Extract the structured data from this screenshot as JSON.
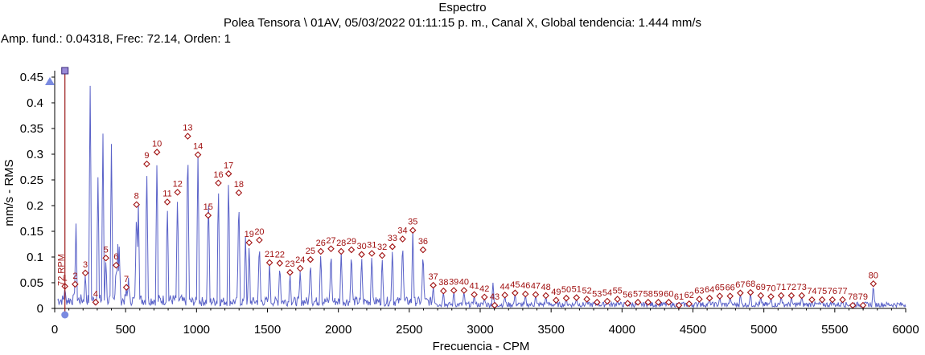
{
  "title": "Espectro",
  "header_line": "Polea  Tensora \\ 01AV, 05/03/2022 01:11:15 p. m., Canal X, Global tendencia: 1.444 mm/s",
  "cursor_info": "Amp. fund.: 0.04318, Frec: 72.14, Orden: 1",
  "cursor_label": "72 RPM",
  "colors": {
    "spectrum": "#5a62c8",
    "harmonic": "#a01010",
    "cursor": "#9a1a1a",
    "axis": "#000000"
  },
  "chart_data": {
    "type": "line",
    "xlabel": "Frecuencia - CPM",
    "ylabel": "mm/s - RMS",
    "xlim": [
      0,
      6000
    ],
    "ylim": [
      0,
      0.45
    ],
    "xticks": [
      "0",
      "500",
      "1000",
      "1500",
      "2000",
      "2500",
      "3000",
      "3500",
      "4000",
      "4500",
      "5000",
      "5500",
      "6000"
    ],
    "yticks": [
      "0",
      "0.05",
      "0.1",
      "0.15",
      "0.2",
      "0.25",
      "0.3",
      "0.35",
      "0.4",
      "0.45"
    ],
    "grid": false,
    "cursor_frequency": 72.14,
    "peaks": [
      {
        "x": 150,
        "y": 0.165
      },
      {
        "x": 250,
        "y": 0.433
      },
      {
        "x": 305,
        "y": 0.255
      },
      {
        "x": 340,
        "y": 0.34
      },
      {
        "x": 400,
        "y": 0.32
      },
      {
        "x": 445,
        "y": 0.125
      },
      {
        "x": 455,
        "y": 0.12
      },
      {
        "x": 520,
        "y": 0.06
      },
      {
        "x": 590,
        "y": 0.205
      },
      {
        "x": 1085,
        "y": 0.2
      },
      {
        "x": 1345,
        "y": 0.14
      },
      {
        "x": 3090,
        "y": 0.05
      }
    ],
    "harmonics": [
      {
        "label": "1",
        "x": 72,
        "y": 0.043
      },
      {
        "label": "2",
        "x": 144,
        "y": 0.047
      },
      {
        "label": "3",
        "x": 216,
        "y": 0.069
      },
      {
        "label": "4",
        "x": 289,
        "y": 0.012
      },
      {
        "label": "5",
        "x": 361,
        "y": 0.098
      },
      {
        "label": "6",
        "x": 433,
        "y": 0.084
      },
      {
        "label": "7",
        "x": 505,
        "y": 0.041
      },
      {
        "label": "8",
        "x": 577,
        "y": 0.202
      },
      {
        "label": "9",
        "x": 649,
        "y": 0.281
      },
      {
        "label": "10",
        "x": 721,
        "y": 0.304
      },
      {
        "label": "11",
        "x": 794,
        "y": 0.207
      },
      {
        "label": "12",
        "x": 866,
        "y": 0.226
      },
      {
        "label": "13",
        "x": 938,
        "y": 0.335
      },
      {
        "label": "14",
        "x": 1010,
        "y": 0.299
      },
      {
        "label": "15",
        "x": 1082,
        "y": 0.181
      },
      {
        "label": "16",
        "x": 1154,
        "y": 0.244
      },
      {
        "label": "17",
        "x": 1226,
        "y": 0.262
      },
      {
        "label": "18",
        "x": 1298,
        "y": 0.225
      },
      {
        "label": "19",
        "x": 1371,
        "y": 0.128
      },
      {
        "label": "20",
        "x": 1443,
        "y": 0.133
      },
      {
        "label": "21",
        "x": 1515,
        "y": 0.089
      },
      {
        "label": "22",
        "x": 1587,
        "y": 0.088
      },
      {
        "label": "23",
        "x": 1659,
        "y": 0.07
      },
      {
        "label": "24",
        "x": 1731,
        "y": 0.078
      },
      {
        "label": "25",
        "x": 1803,
        "y": 0.095
      },
      {
        "label": "26",
        "x": 1876,
        "y": 0.111
      },
      {
        "label": "27",
        "x": 1948,
        "y": 0.116
      },
      {
        "label": "28",
        "x": 2020,
        "y": 0.111
      },
      {
        "label": "29",
        "x": 2092,
        "y": 0.114
      },
      {
        "label": "30",
        "x": 2164,
        "y": 0.105
      },
      {
        "label": "31",
        "x": 2236,
        "y": 0.107
      },
      {
        "label": "32",
        "x": 2309,
        "y": 0.103
      },
      {
        "label": "33",
        "x": 2381,
        "y": 0.12
      },
      {
        "label": "34",
        "x": 2453,
        "y": 0.135
      },
      {
        "label": "35",
        "x": 2525,
        "y": 0.152
      },
      {
        "label": "36",
        "x": 2597,
        "y": 0.114
      },
      {
        "label": "37",
        "x": 2669,
        "y": 0.045
      },
      {
        "label": "38",
        "x": 2741,
        "y": 0.034
      },
      {
        "label": "39",
        "x": 2814,
        "y": 0.035
      },
      {
        "label": "40",
        "x": 2886,
        "y": 0.035
      },
      {
        "label": "41",
        "x": 2958,
        "y": 0.027
      },
      {
        "label": "42",
        "x": 3030,
        "y": 0.022
      },
      {
        "label": "43",
        "x": 3102,
        "y": 0.006
      },
      {
        "label": "44",
        "x": 3174,
        "y": 0.026
      },
      {
        "label": "45",
        "x": 3246,
        "y": 0.03
      },
      {
        "label": "46",
        "x": 3319,
        "y": 0.028
      },
      {
        "label": "47",
        "x": 3391,
        "y": 0.027
      },
      {
        "label": "48",
        "x": 3463,
        "y": 0.025
      },
      {
        "label": "49",
        "x": 3535,
        "y": 0.016
      },
      {
        "label": "50",
        "x": 3607,
        "y": 0.02
      },
      {
        "label": "51",
        "x": 3679,
        "y": 0.021
      },
      {
        "label": "52",
        "x": 3752,
        "y": 0.018
      },
      {
        "label": "53",
        "x": 3824,
        "y": 0.012
      },
      {
        "label": "54",
        "x": 3896,
        "y": 0.014
      },
      {
        "label": "55",
        "x": 3968,
        "y": 0.018
      },
      {
        "label": "56",
        "x": 4040,
        "y": 0.01
      },
      {
        "label": "57",
        "x": 4112,
        "y": 0.012
      },
      {
        "label": "58",
        "x": 4184,
        "y": 0.012
      },
      {
        "label": "59",
        "x": 4256,
        "y": 0.012
      },
      {
        "label": "60",
        "x": 4329,
        "y": 0.012
      },
      {
        "label": "61",
        "x": 4401,
        "y": 0.006
      },
      {
        "label": "62",
        "x": 4473,
        "y": 0.009
      },
      {
        "label": "63",
        "x": 4545,
        "y": 0.018
      },
      {
        "label": "64",
        "x": 4617,
        "y": 0.02
      },
      {
        "label": "65",
        "x": 4689,
        "y": 0.024
      },
      {
        "label": "66",
        "x": 4762,
        "y": 0.024
      },
      {
        "label": "67",
        "x": 4834,
        "y": 0.03
      },
      {
        "label": "68",
        "x": 4906,
        "y": 0.031
      },
      {
        "label": "69",
        "x": 4978,
        "y": 0.025
      },
      {
        "label": "70",
        "x": 5050,
        "y": 0.023
      },
      {
        "label": "71",
        "x": 5122,
        "y": 0.025
      },
      {
        "label": "72",
        "x": 5194,
        "y": 0.025
      },
      {
        "label": "73",
        "x": 5267,
        "y": 0.025
      },
      {
        "label": "74",
        "x": 5339,
        "y": 0.017
      },
      {
        "label": "75",
        "x": 5411,
        "y": 0.017
      },
      {
        "label": "76",
        "x": 5483,
        "y": 0.017
      },
      {
        "label": "77",
        "x": 5555,
        "y": 0.017
      },
      {
        "label": "78",
        "x": 5627,
        "y": 0.006
      },
      {
        "label": "79",
        "x": 5699,
        "y": 0.006
      },
      {
        "label": "80",
        "x": 5772,
        "y": 0.048
      }
    ]
  }
}
